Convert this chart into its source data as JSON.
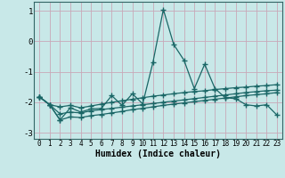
{
  "x": [
    0,
    1,
    2,
    3,
    4,
    5,
    6,
    7,
    8,
    9,
    10,
    11,
    12,
    13,
    14,
    15,
    16,
    17,
    18,
    19,
    20,
    21,
    22,
    23
  ],
  "line1_y": [
    -1.82,
    -2.08,
    -2.58,
    -2.18,
    -2.32,
    -2.22,
    -2.2,
    -1.78,
    -2.1,
    -1.72,
    -2.05,
    -0.68,
    1.05,
    -0.1,
    -0.62,
    -1.55,
    -0.75,
    -1.55,
    -1.85,
    -1.88,
    -2.08,
    -2.12,
    -2.08,
    -2.42
  ],
  "line2_y": [
    -1.82,
    -2.08,
    -2.15,
    -2.1,
    -2.18,
    -2.12,
    -2.06,
    -2.0,
    -1.95,
    -1.9,
    -1.85,
    -1.8,
    -1.76,
    -1.72,
    -1.68,
    -1.65,
    -1.62,
    -1.58,
    -1.55,
    -1.52,
    -1.5,
    -1.47,
    -1.45,
    -1.42
  ],
  "line3_y": [
    -1.82,
    -2.08,
    -2.38,
    -2.32,
    -2.35,
    -2.28,
    -2.24,
    -2.2,
    -2.16,
    -2.12,
    -2.08,
    -2.04,
    -2.0,
    -1.96,
    -1.92,
    -1.88,
    -1.84,
    -1.8,
    -1.76,
    -1.72,
    -1.68,
    -1.65,
    -1.62,
    -1.6
  ],
  "line4_y": [
    -1.82,
    -2.08,
    -2.58,
    -2.48,
    -2.5,
    -2.44,
    -2.4,
    -2.35,
    -2.3,
    -2.24,
    -2.2,
    -2.15,
    -2.1,
    -2.06,
    -2.02,
    -1.98,
    -1.94,
    -1.9,
    -1.86,
    -1.82,
    -1.78,
    -1.75,
    -1.72,
    -1.68
  ],
  "bg_color": "#c8e8e8",
  "grid_color": "#c8a8b8",
  "line_color": "#1a6666",
  "xlabel": "Humidex (Indice chaleur)",
  "ylim": [
    -3.2,
    1.3
  ],
  "xlim": [
    -0.5,
    23.5
  ],
  "yticks": [
    1,
    0,
    -1,
    -2,
    -3
  ],
  "xticks": [
    0,
    1,
    2,
    3,
    4,
    5,
    6,
    7,
    8,
    9,
    10,
    11,
    12,
    13,
    14,
    15,
    16,
    17,
    18,
    19,
    20,
    21,
    22,
    23
  ],
  "marker": "+",
  "markersize": 4,
  "linewidth": 0.9
}
